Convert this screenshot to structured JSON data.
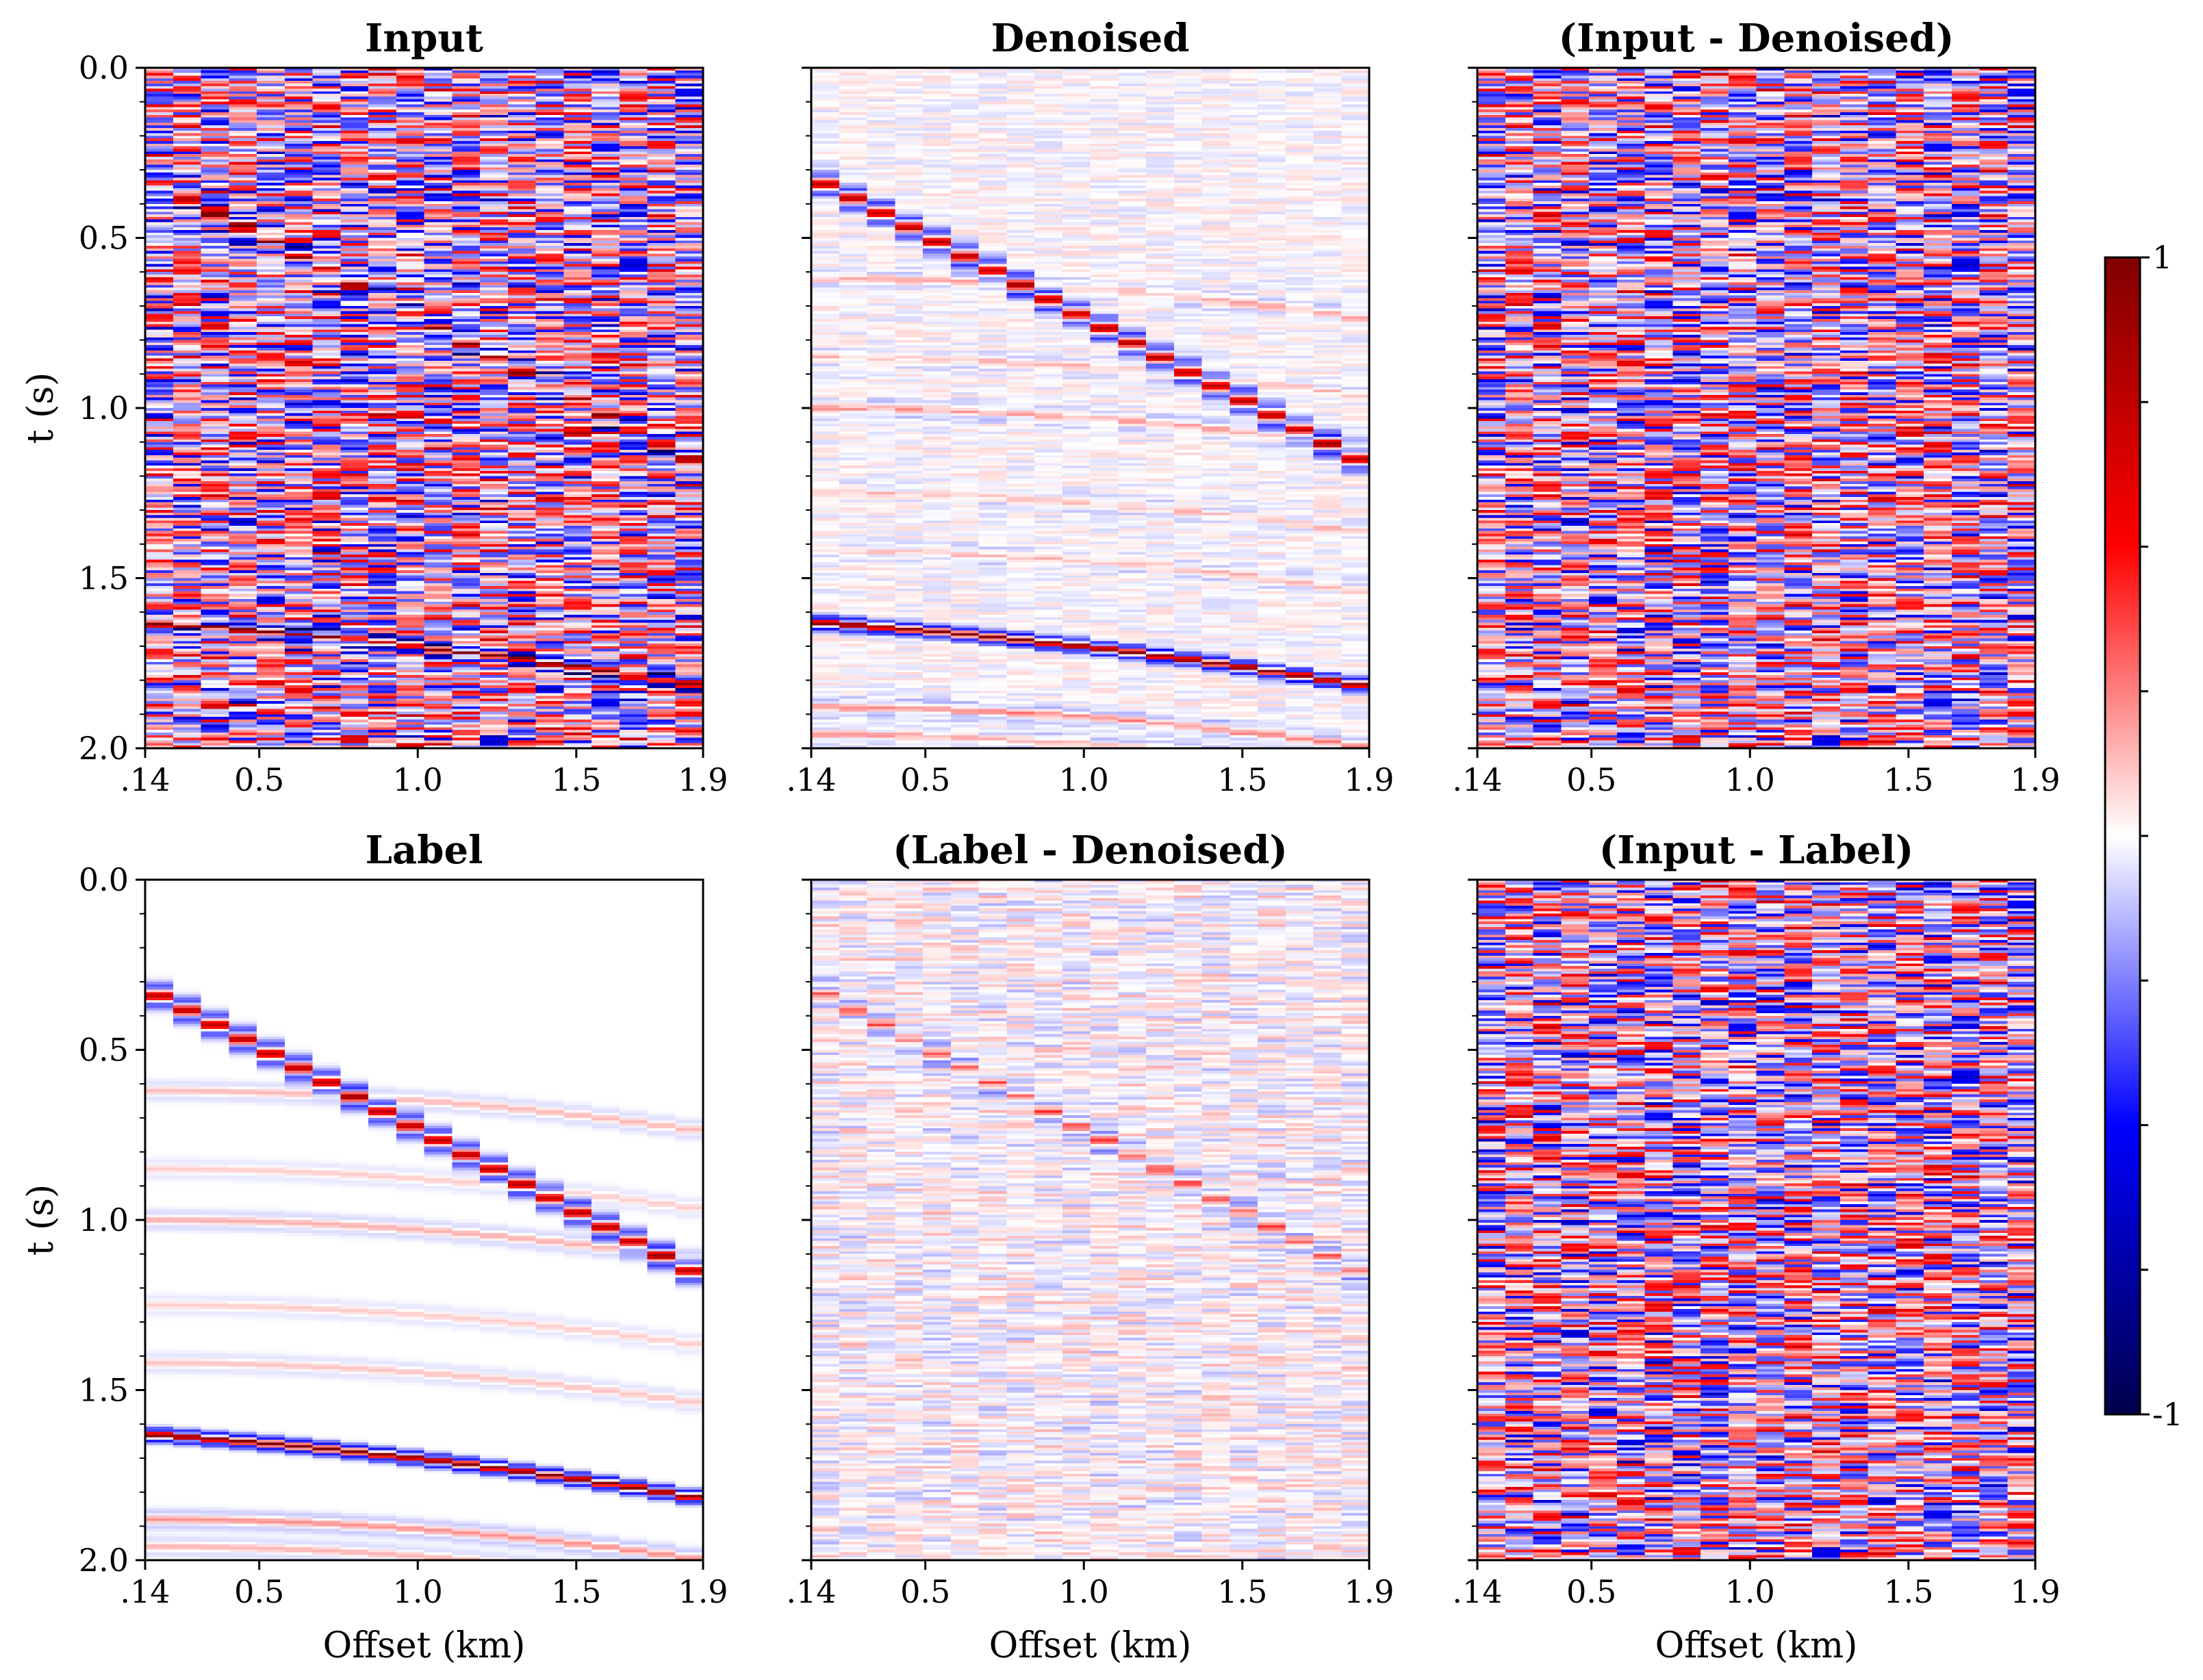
{
  "chart_data": {
    "type": "heatmap",
    "colormap": {
      "name": "seismic",
      "colors": [
        "#00004c",
        "#0000ff",
        "#ffffff",
        "#ff0000",
        "#800000"
      ],
      "range": [
        -1,
        1
      ],
      "tick_labels": [
        "1",
        "-1"
      ],
      "minor_ticks": [
        -0.75,
        -0.5,
        -0.25,
        0,
        0.25,
        0.5,
        0.75
      ]
    },
    "x_axis": {
      "range": [
        0.14,
        1.9
      ],
      "ticks": [
        0.14,
        0.5,
        1.0,
        1.5,
        1.9
      ],
      "tick_labels": [
        ".14",
        "0.5",
        "1.0",
        "1.5",
        "1.9"
      ],
      "label": "Offset (km)"
    },
    "y_axis": {
      "range": [
        0.0,
        2.0
      ],
      "inverted": true,
      "ticks": [
        0.0,
        0.5,
        1.0,
        1.5,
        2.0
      ],
      "tick_labels": [
        "0.0",
        "0.5",
        "1.0",
        "1.5",
        "2.0"
      ],
      "label": "t (s)"
    },
    "events": {
      "direct_wave": {
        "t_at_min_offset": 0.32,
        "t_at_max_offset": 1.17
      },
      "reflection": {
        "t_at_min_offset": 1.63,
        "t_at_max_offset": 1.82
      }
    },
    "panels": [
      {
        "title": "Input",
        "row": 0,
        "col": 0,
        "content": "signal+noise"
      },
      {
        "title": "Denoised",
        "row": 0,
        "col": 1,
        "content": "signal"
      },
      {
        "title": "(Input - Denoised)",
        "row": 0,
        "col": 2,
        "content": "noise"
      },
      {
        "title": "Label",
        "row": 1,
        "col": 0,
        "content": "clean-signal"
      },
      {
        "title": "(Label - Denoised)",
        "row": 1,
        "col": 1,
        "content": "residual"
      },
      {
        "title": "(Input - Label)",
        "row": 1,
        "col": 2,
        "content": "noise"
      }
    ]
  }
}
